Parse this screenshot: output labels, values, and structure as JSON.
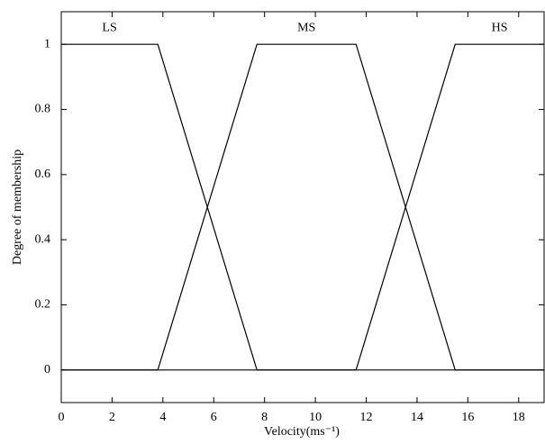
{
  "chart_data": {
    "type": "line",
    "xlabel": "Velocity(ms⁻¹)",
    "ylabel": "Degree of membership",
    "xlim": [
      0,
      19
    ],
    "ylim": [
      -0.1,
      1.1
    ],
    "xticks": [
      0,
      2,
      4,
      6,
      8,
      10,
      12,
      14,
      16,
      18
    ],
    "yticks": [
      0,
      0.2,
      0.4,
      0.6,
      0.8,
      1
    ],
    "grid": false,
    "series": [
      {
        "name": "LS",
        "color": "#000000",
        "x": [
          0,
          3.8,
          7.7,
          19
        ],
        "values": [
          1,
          1,
          0,
          0
        ]
      },
      {
        "name": "MS",
        "color": "#000000",
        "x": [
          0,
          3.8,
          7.7,
          11.6,
          15.5,
          19
        ],
        "values": [
          0,
          0,
          1,
          1,
          0,
          0
        ]
      },
      {
        "name": "HS",
        "color": "#000000",
        "x": [
          0,
          11.6,
          15.5,
          19
        ],
        "values": [
          0,
          0,
          1,
          1
        ]
      }
    ]
  }
}
